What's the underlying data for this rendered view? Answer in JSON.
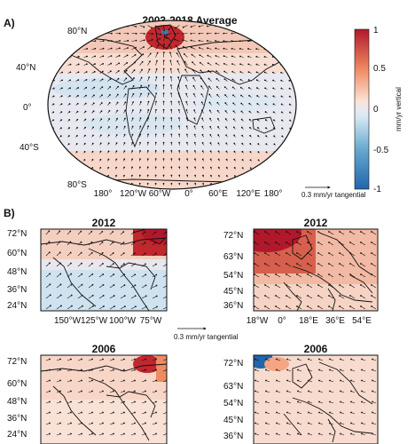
{
  "panelA": {
    "label": "A)",
    "title": "2003-2018 Average",
    "lat_labels": [
      "80°N",
      "40°N",
      "0°",
      "40°S",
      "80°S"
    ],
    "lon_labels": [
      "180°",
      "120°W",
      "60°W",
      "0°",
      "60°E",
      "120°E",
      "180°"
    ],
    "scale_text": "0.3 mm/yr tangential"
  },
  "colorbar": {
    "ticks": [
      "1",
      "0.5",
      "0",
      "-0.5",
      "-1"
    ],
    "label": "mm/yr vertical",
    "colors": [
      "#b2182b",
      "#ef8a62",
      "#fddbc7",
      "#e6e6ef",
      "#d1e5f0",
      "#67a9cf",
      "#2166ac"
    ]
  },
  "panelB": {
    "label": "B)",
    "scale_text": "0.3 mm/yr tangential",
    "maps": [
      {
        "title": "2012",
        "lat_labels": [
          "72°N",
          "60°N",
          "48°N",
          "36°N",
          "24°N"
        ],
        "lon_labels": [
          "150°W",
          "125°W",
          "100°W",
          "75°W"
        ]
      },
      {
        "title": "2012",
        "lat_labels": [
          "72°N",
          "63°N",
          "54°N",
          "45°N",
          "36°N"
        ],
        "lon_labels": [
          "18°W",
          "0°",
          "18°E",
          "36°E",
          "54°E"
        ]
      },
      {
        "title": "2006",
        "lat_labels": [
          "72°N",
          "60°N",
          "48°N",
          "36°N",
          "24°N"
        ],
        "lon_labels": []
      },
      {
        "title": "2006",
        "lat_labels": [
          "72°N",
          "63°N",
          "54°N",
          "45°N",
          "36°N"
        ],
        "lon_labels": []
      }
    ]
  }
}
